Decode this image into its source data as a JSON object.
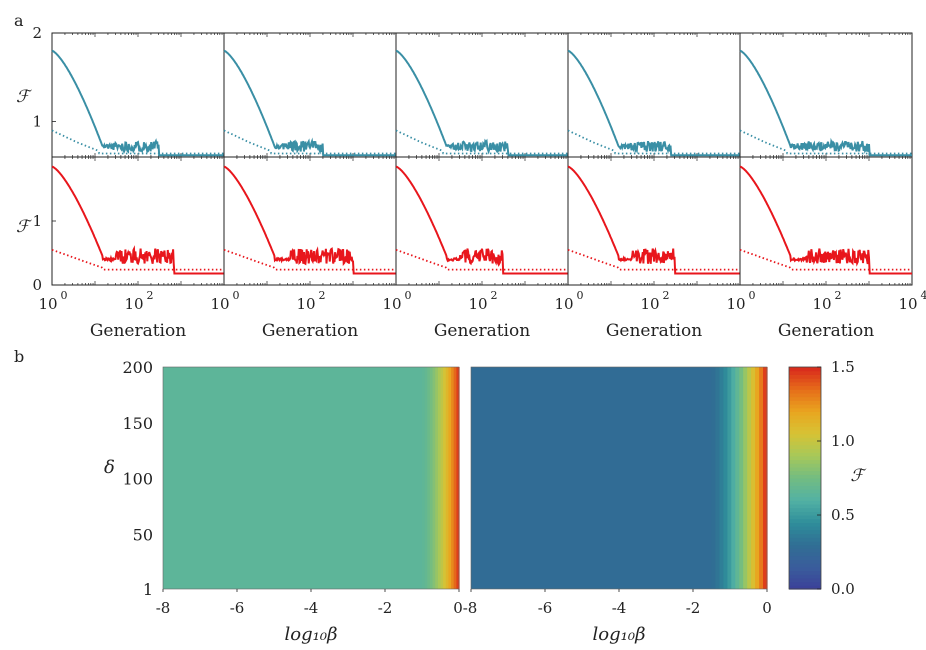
{
  "figure": {
    "panel_a_label": "a",
    "panel_b_label": "b"
  },
  "chart_data": [
    {
      "type": "line",
      "panel": "a",
      "title": "",
      "xlabel": "Generation",
      "ylabel": "ℱ",
      "xscale": "log10",
      "xlim": [
        1,
        10000
      ],
      "x_tick_labels": [
        "10",
        "10",
        "10",
        "10"
      ],
      "x_tick_exponents": [
        "0",
        "2",
        "",
        "4"
      ],
      "rows": [
        {
          "name": "top row (teal)",
          "color": "#3a8fa5",
          "ylim": [
            0.6,
            2.0
          ],
          "y_tick_labels": [
            "2",
            "1"
          ],
          "y_ticks": [
            2,
            1
          ],
          "solid_shape": {
            "start": 1.8,
            "knee_gen": 15,
            "plateau": 0.72,
            "noise": 0.06,
            "end_gen": 1000,
            "final": 0.62
          },
          "dotted_shape": {
            "start": 0.9,
            "drop_gen": 4,
            "final": 0.62
          },
          "column_end_gens": [
            300,
            200,
            400,
            250,
            1000
          ]
        },
        {
          "name": "bottom row (red)",
          "color": "#e8161c",
          "ylim": [
            0.0,
            2.0
          ],
          "y_tick_labels": [
            "1",
            "0"
          ],
          "y_ticks": [
            1,
            0
          ],
          "solid_shape": {
            "start": 1.85,
            "knee_gen": 15,
            "plateau": 0.45,
            "noise": 0.12,
            "end_gen": 1000,
            "final": 0.18
          },
          "dotted_shape": {
            "start": 0.55,
            "drop_gen": 5,
            "final": 0.22
          },
          "column_end_gens": [
            700,
            1000,
            300,
            300,
            1000
          ]
        }
      ],
      "columns": 5
    },
    {
      "type": "heatmap",
      "panel": "b",
      "xlabel": "log₁₀β",
      "ylabel": "δ",
      "xlim": [
        -8,
        0
      ],
      "ylim": [
        1,
        200
      ],
      "x_ticks": [
        -8,
        -6,
        -4,
        -2,
        0
      ],
      "x_tick_labels": [
        "-8",
        "-6",
        "-4",
        "-2",
        "0"
      ],
      "y_ticks": [
        1,
        50,
        100,
        150,
        200
      ],
      "y_tick_labels": [
        "1",
        "50",
        "100",
        "150",
        "200"
      ],
      "left_map": {
        "base_value": 0.65,
        "transition_start": -1.0,
        "max_value": 1.45
      },
      "right_map": {
        "base_value": 0.28,
        "transition_start": -1.5,
        "max_value": 1.45
      },
      "colorbar": {
        "label": "ℱ",
        "range": [
          0.0,
          1.5
        ],
        "ticks": [
          0.0,
          0.5,
          1.0,
          1.5
        ],
        "tick_labels": [
          "0.0",
          "0.5",
          "1.0",
          "1.5"
        ],
        "colors": [
          "#3b3f99",
          "#3a5d9c",
          "#306e94",
          "#2f8e9a",
          "#52b1a4",
          "#72bc82",
          "#a6c85a",
          "#d6c335",
          "#e9a51f",
          "#e66d1a",
          "#d8281c"
        ]
      }
    }
  ]
}
